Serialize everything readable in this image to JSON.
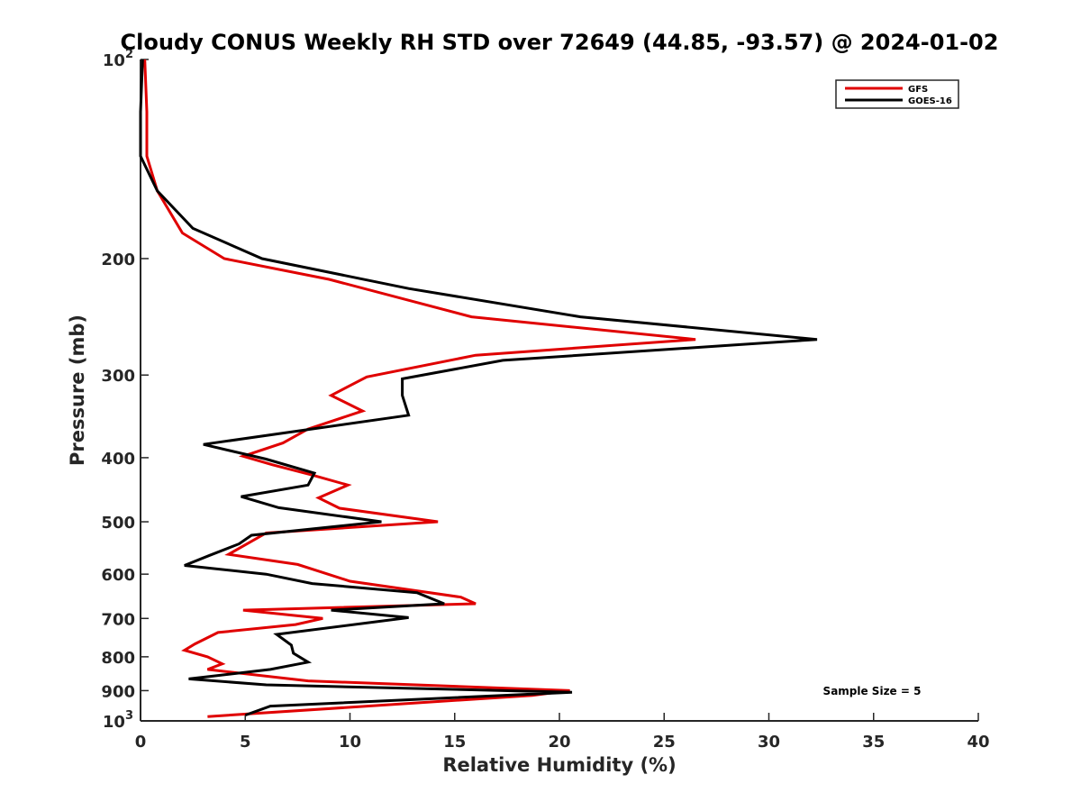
{
  "chart_data": {
    "type": "line",
    "title": "Cloudy CONUS Weekly RH STD over 72649 (44.85, -93.57) @ 2024-01-02",
    "xlabel": "Relative Humidity (%)",
    "ylabel": "Pressure (mb)",
    "xlim": [
      0,
      40
    ],
    "ylim": [
      100,
      1000
    ],
    "y_scale": "log",
    "y_reversed": true,
    "grid": false,
    "legend_position": "top-right",
    "x_ticks": [
      0,
      5,
      10,
      15,
      20,
      25,
      30,
      35,
      40
    ],
    "x_tick_labels": [
      "0",
      "5",
      "10",
      "15",
      "20",
      "25",
      "30",
      "35",
      "40"
    ],
    "y_ticks": [
      100,
      200,
      300,
      400,
      500,
      600,
      700,
      800,
      900,
      1000
    ],
    "y_tick_labels": [
      {
        "base": "10",
        "exp": "2"
      },
      {
        "base": "200"
      },
      {
        "base": "300"
      },
      {
        "base": "400"
      },
      {
        "base": "500"
      },
      {
        "base": "600"
      },
      {
        "base": "700"
      },
      {
        "base": "800"
      },
      {
        "base": "900"
      },
      {
        "base": "10",
        "exp": "3"
      }
    ],
    "annotation": "Sample Size = 5",
    "series": [
      {
        "name": "GFS",
        "color": "#e00000",
        "points": [
          {
            "x": 0.2,
            "p": 100
          },
          {
            "x": 0.3,
            "p": 120
          },
          {
            "x": 0.3,
            "p": 140
          },
          {
            "x": 0.8,
            "p": 158
          },
          {
            "x": 2.0,
            "p": 183
          },
          {
            "x": 4.0,
            "p": 200
          },
          {
            "x": 9.0,
            "p": 215
          },
          {
            "x": 15.8,
            "p": 245
          },
          {
            "x": 26.5,
            "p": 265
          },
          {
            "x": 16.0,
            "p": 280
          },
          {
            "x": 10.8,
            "p": 302
          },
          {
            "x": 9.1,
            "p": 322
          },
          {
            "x": 10.6,
            "p": 340
          },
          {
            "x": 8.0,
            "p": 362
          },
          {
            "x": 6.8,
            "p": 380
          },
          {
            "x": 4.9,
            "p": 398
          },
          {
            "x": 6.3,
            "p": 410
          },
          {
            "x": 8.2,
            "p": 425
          },
          {
            "x": 9.9,
            "p": 440
          },
          {
            "x": 8.5,
            "p": 460
          },
          {
            "x": 9.5,
            "p": 477
          },
          {
            "x": 14.2,
            "p": 500
          },
          {
            "x": 6.0,
            "p": 520
          },
          {
            "x": 4.2,
            "p": 560
          },
          {
            "x": 7.5,
            "p": 580
          },
          {
            "x": 10.0,
            "p": 615
          },
          {
            "x": 15.3,
            "p": 650
          },
          {
            "x": 16.0,
            "p": 665
          },
          {
            "x": 4.9,
            "p": 680
          },
          {
            "x": 8.7,
            "p": 700
          },
          {
            "x": 7.4,
            "p": 715
          },
          {
            "x": 3.7,
            "p": 735
          },
          {
            "x": 2.6,
            "p": 765
          },
          {
            "x": 2.1,
            "p": 782
          },
          {
            "x": 3.2,
            "p": 800
          },
          {
            "x": 3.9,
            "p": 820
          },
          {
            "x": 3.2,
            "p": 836
          },
          {
            "x": 8.0,
            "p": 870
          },
          {
            "x": 20.5,
            "p": 900
          },
          {
            "x": 18.7,
            "p": 915
          },
          {
            "x": 3.2,
            "p": 985
          }
        ]
      },
      {
        "name": "GOES-16",
        "color": "#000000",
        "points": [
          {
            "x": 0.1,
            "p": 100
          },
          {
            "x": 0.0,
            "p": 120
          },
          {
            "x": 0.0,
            "p": 140
          },
          {
            "x": 0.8,
            "p": 158
          },
          {
            "x": 2.5,
            "p": 180
          },
          {
            "x": 5.8,
            "p": 200
          },
          {
            "x": 12.8,
            "p": 222
          },
          {
            "x": 21.0,
            "p": 245
          },
          {
            "x": 32.3,
            "p": 265
          },
          {
            "x": 17.3,
            "p": 285
          },
          {
            "x": 12.5,
            "p": 304
          },
          {
            "x": 12.5,
            "p": 322
          },
          {
            "x": 12.8,
            "p": 345
          },
          {
            "x": 3.0,
            "p": 382
          },
          {
            "x": 6.0,
            "p": 402
          },
          {
            "x": 8.3,
            "p": 422
          },
          {
            "x": 8.0,
            "p": 440
          },
          {
            "x": 4.8,
            "p": 458
          },
          {
            "x": 6.6,
            "p": 476
          },
          {
            "x": 11.5,
            "p": 500
          },
          {
            "x": 5.3,
            "p": 524
          },
          {
            "x": 4.7,
            "p": 540
          },
          {
            "x": 3.3,
            "p": 562
          },
          {
            "x": 2.1,
            "p": 582
          },
          {
            "x": 6.0,
            "p": 600
          },
          {
            "x": 8.2,
            "p": 620
          },
          {
            "x": 13.2,
            "p": 640
          },
          {
            "x": 14.5,
            "p": 665
          },
          {
            "x": 9.1,
            "p": 680
          },
          {
            "x": 12.8,
            "p": 698
          },
          {
            "x": 6.5,
            "p": 740
          },
          {
            "x": 7.2,
            "p": 768
          },
          {
            "x": 7.3,
            "p": 790
          },
          {
            "x": 8.0,
            "p": 815
          },
          {
            "x": 6.2,
            "p": 836
          },
          {
            "x": 2.3,
            "p": 864
          },
          {
            "x": 6.0,
            "p": 882
          },
          {
            "x": 20.6,
            "p": 905
          },
          {
            "x": 6.2,
            "p": 950
          },
          {
            "x": 5.0,
            "p": 980
          }
        ]
      }
    ]
  }
}
